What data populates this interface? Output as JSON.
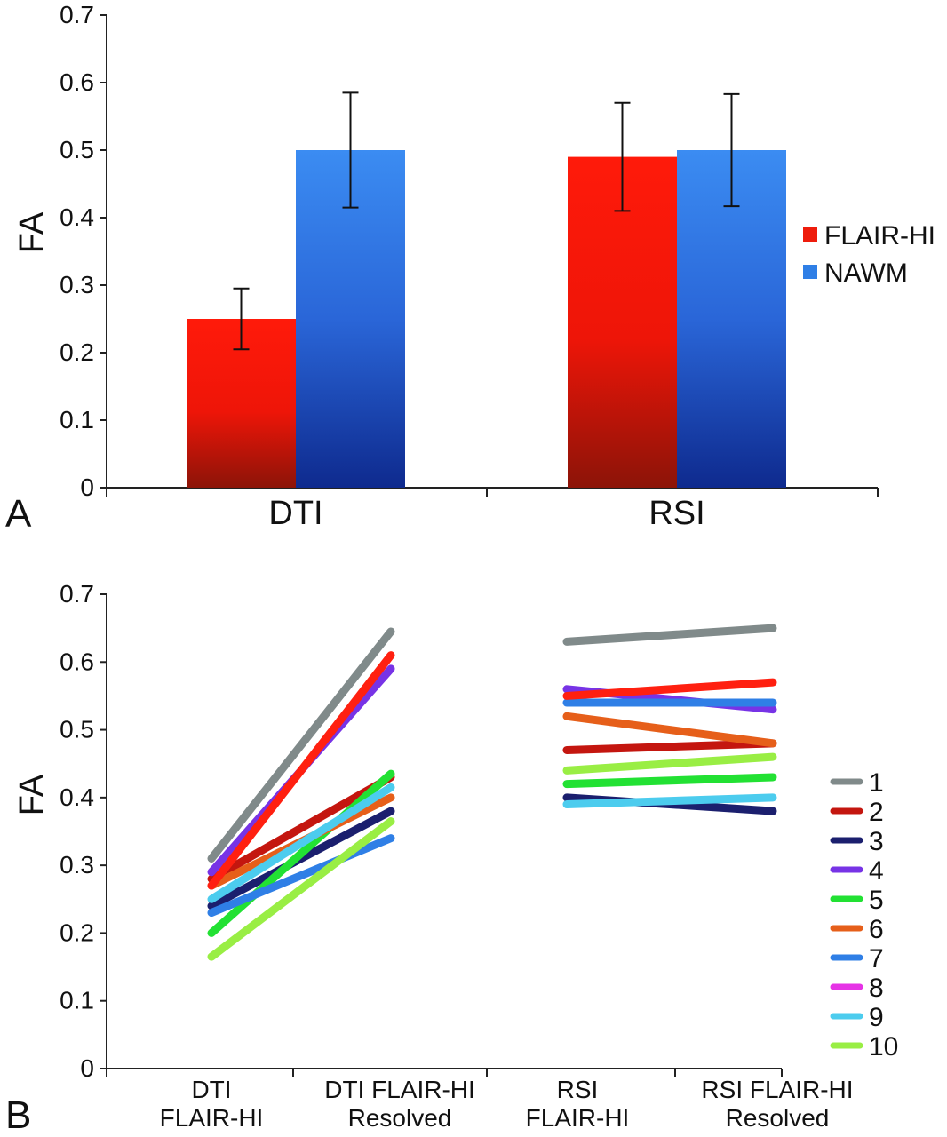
{
  "chart_data": [
    {
      "panel_label": "A",
      "type": "bar",
      "ylabel": "FA",
      "ylim": [
        0,
        0.7
      ],
      "yticks": [
        "0",
        "0.1",
        "0.2",
        "0.3",
        "0.4",
        "0.5",
        "0.6",
        "0.7"
      ],
      "categories": [
        "DTI",
        "RSI"
      ],
      "legend_position": "right",
      "series": [
        {
          "name": "FLAIR-HI",
          "color": "#ee1c0c",
          "values": [
            0.25,
            0.49
          ],
          "error": [
            0.045,
            0.08
          ]
        },
        {
          "name": "NAWM",
          "color": "#2f7fe6",
          "values": [
            0.5,
            0.5
          ],
          "error": [
            0.085,
            0.083
          ]
        }
      ]
    },
    {
      "panel_label": "B",
      "type": "line",
      "ylabel": "FA",
      "ylim": [
        0,
        0.7
      ],
      "yticks": [
        "0",
        "0.1",
        "0.2",
        "0.3",
        "0.4",
        "0.5",
        "0.6",
        "0.7"
      ],
      "categories": [
        [
          "DTI",
          "FLAIR-HI"
        ],
        [
          "DTI FLAIR-HI",
          "Resolved"
        ],
        [
          "RSI",
          "FLAIR-HI"
        ],
        [
          "RSI FLAIR-HI",
          "Resolved"
        ]
      ],
      "legend_position": "right",
      "series": [
        {
          "name": "1",
          "color": "#808a8a",
          "values": [
            0.31,
            0.645,
            0.63,
            0.65
          ]
        },
        {
          "name": "2",
          "color": "#c4160f",
          "values": [
            0.28,
            0.43,
            0.47,
            0.48
          ]
        },
        {
          "name": "3",
          "color": "#1b1f6e",
          "values": [
            0.24,
            0.38,
            0.4,
            0.38
          ]
        },
        {
          "name": "4",
          "color": "#7733e6",
          "values": [
            0.29,
            0.59,
            0.56,
            0.53
          ]
        },
        {
          "name": "5",
          "color": "#22e133",
          "values": [
            0.2,
            0.435,
            0.42,
            0.43
          ]
        },
        {
          "name": "6",
          "color": "#e65f1a",
          "values": [
            0.27,
            0.4,
            0.52,
            0.48
          ]
        },
        {
          "name": "7",
          "color": "#2f7fe6",
          "values": [
            0.23,
            0.34,
            0.54,
            0.54
          ]
        },
        {
          "name": "8",
          "color": "#e633e6",
          "values": [
            0.27,
            0.61,
            0.55,
            0.57
          ]
        },
        {
          "name": "9",
          "color": "#4cccee",
          "values": [
            0.25,
            0.415,
            0.39,
            0.4
          ]
        },
        {
          "name": "10",
          "color": "#99ee44",
          "values": [
            0.165,
            0.365,
            0.44,
            0.46
          ]
        }
      ],
      "overlay": {
        "series": "8",
        "color": "#ff2010"
      }
    }
  ]
}
